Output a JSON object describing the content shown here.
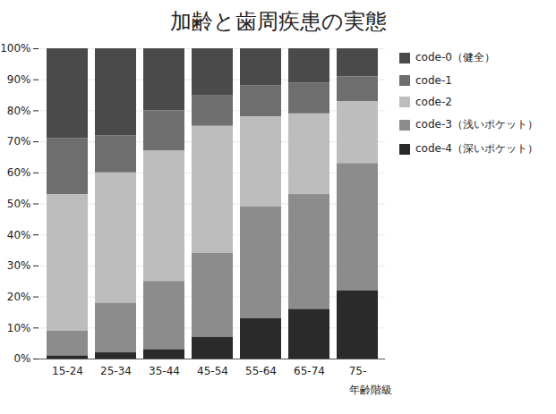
{
  "chart_data": {
    "type": "bar",
    "stacked": true,
    "title": "加齢と歯周疾患の実態",
    "x_label": "年齢階級",
    "categories": [
      "15-24",
      "25-34",
      "35-44",
      "45-54",
      "55-64",
      "65-74",
      "75-"
    ],
    "series": [
      {
        "name": "code-0（健全）",
        "color": "#4a4a4a",
        "values": [
          29,
          28,
          20,
          15,
          12,
          11,
          9
        ]
      },
      {
        "name": "code-1",
        "color": "#6e6e6e",
        "values": [
          18,
          12,
          13,
          10,
          10,
          10,
          8
        ]
      },
      {
        "name": "code-2",
        "color": "#bdbdbd",
        "values": [
          44,
          42,
          42,
          41,
          29,
          26,
          20
        ]
      },
      {
        "name": "code-3（浅いポケット）",
        "color": "#8c8c8c",
        "values": [
          8,
          16,
          22,
          27,
          36,
          37,
          41
        ]
      },
      {
        "name": "code-4（深いポケット）",
        "color": "#2a2a2a",
        "values": [
          1,
          2,
          3,
          7,
          13,
          16,
          22
        ]
      }
    ],
    "ylim": [
      0,
      100
    ],
    "yticks": [
      {
        "value": 0,
        "label": "0%"
      },
      {
        "value": 10,
        "label": "10%"
      },
      {
        "value": 20,
        "label": "20%"
      },
      {
        "value": 30,
        "label": "30%"
      },
      {
        "value": 40,
        "label": "40%"
      },
      {
        "value": 50,
        "label": "50%"
      },
      {
        "value": 60,
        "label": "60%"
      },
      {
        "value": 70,
        "label": "70%"
      },
      {
        "value": 80,
        "label": "80%"
      },
      {
        "value": 90,
        "label": "90%"
      },
      {
        "value": 100,
        "label": "100%"
      }
    ],
    "grid": true,
    "legend": "right"
  }
}
